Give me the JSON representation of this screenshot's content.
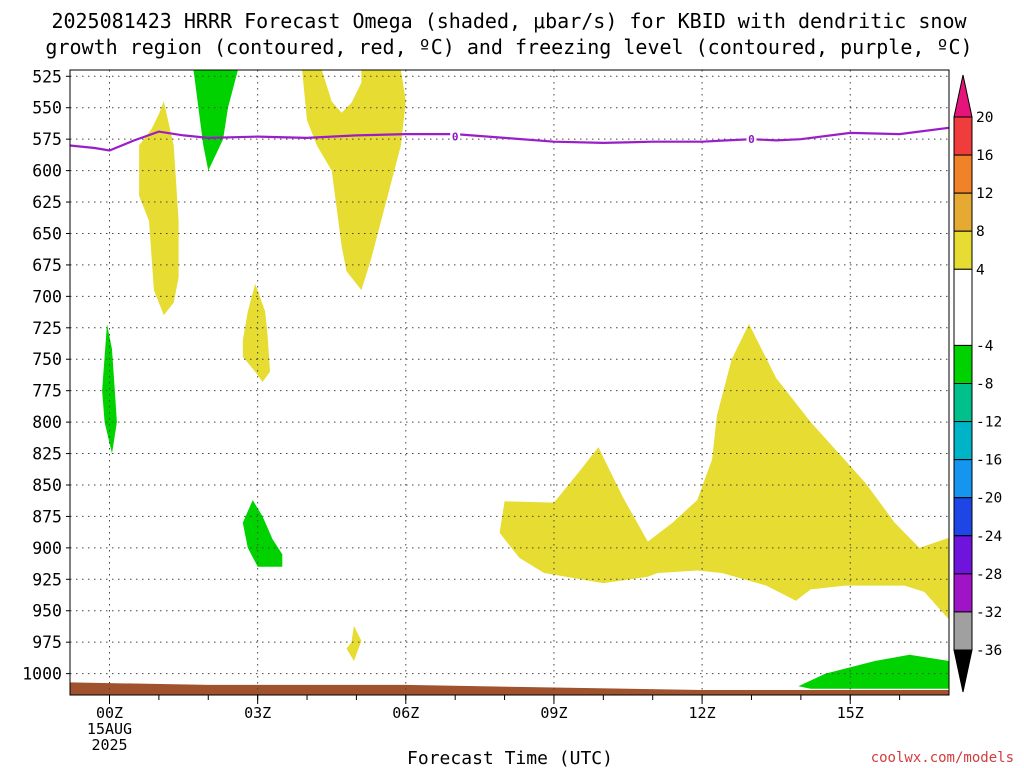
{
  "chart_data": {
    "type": "heatmap",
    "title_lines": [
      "2025081423 HRRR Forecast Omega (shaded, μbar/s) for KBID with dendritic snow",
      "growth region (contoured, red, ºC) and freezing level (contoured, purple, ºC)"
    ],
    "xlabel": "Forecast Time (UTC)",
    "x_range": [
      -0.8,
      17
    ],
    "x_ticks": [
      {
        "x": 0,
        "lines": [
          "00Z",
          "15AUG",
          "2025"
        ]
      },
      {
        "x": 3,
        "lines": [
          "03Z"
        ]
      },
      {
        "x": 6,
        "lines": [
          "06Z"
        ]
      },
      {
        "x": 9,
        "lines": [
          "09Z"
        ]
      },
      {
        "x": 12,
        "lines": [
          "12Z"
        ]
      },
      {
        "x": 15,
        "lines": [
          "15Z"
        ]
      }
    ],
    "y_range_hPa": [
      520,
      1017
    ],
    "y_ticks": [
      "525",
      "550",
      "575",
      "600",
      "625",
      "650",
      "675",
      "700",
      "725",
      "750",
      "775",
      "800",
      "825",
      "850",
      "875",
      "900",
      "925",
      "950",
      "975",
      "1000"
    ],
    "grid": true,
    "colorbar": {
      "ticks": [
        "20",
        "16",
        "12",
        "8",
        "4",
        "-4",
        "-8",
        "-12",
        "-16",
        "-20",
        "-24",
        "-28",
        "-32",
        "-36"
      ],
      "segments": [
        {
          "from": 16,
          "to": 20,
          "color": "#f03c3c"
        },
        {
          "from": 12,
          "to": 16,
          "color": "#f08228"
        },
        {
          "from": 8,
          "to": 12,
          "color": "#e6aa32"
        },
        {
          "from": 4,
          "to": 8,
          "color": "#e6dc32"
        },
        {
          "from": -4,
          "to": 4,
          "color": "#ffffff"
        },
        {
          "from": -8,
          "to": -4,
          "color": "#00d200"
        },
        {
          "from": -12,
          "to": -8,
          "color": "#00c08c"
        },
        {
          "from": -16,
          "to": -12,
          "color": "#00b4c8"
        },
        {
          "from": -20,
          "to": -16,
          "color": "#1496f0"
        },
        {
          "from": -24,
          "to": -20,
          "color": "#1e46e6"
        },
        {
          "from": -28,
          "to": -24,
          "color": "#6e14dc"
        },
        {
          "from": -32,
          "to": -28,
          "color": "#a014c8"
        },
        {
          "from": -36,
          "to": -32,
          "color": "#a0a0a0"
        }
      ],
      "top_arrow_color": "#e6147a",
      "bottom_arrow_color": "#000000"
    },
    "freezing_level": {
      "label": "0",
      "color": "#9a1ec8",
      "label_points": [
        [
          7.0,
          573
        ],
        [
          13.0,
          575
        ]
      ],
      "points": [
        [
          -0.8,
          580
        ],
        [
          -0.3,
          582
        ],
        [
          0,
          584
        ],
        [
          0.5,
          576
        ],
        [
          1.0,
          569
        ],
        [
          1.5,
          572
        ],
        [
          2,
          574
        ],
        [
          3,
          573
        ],
        [
          4,
          574
        ],
        [
          5,
          572
        ],
        [
          6,
          571
        ],
        [
          7,
          571
        ],
        [
          8,
          574
        ],
        [
          9,
          577
        ],
        [
          10,
          578
        ],
        [
          11,
          577
        ],
        [
          12,
          577
        ],
        [
          12.5,
          576
        ],
        [
          13,
          575
        ],
        [
          13.5,
          576
        ],
        [
          14,
          575
        ],
        [
          15,
          570
        ],
        [
          16,
          571
        ],
        [
          17,
          566
        ]
      ]
    },
    "omega_regions": [
      {
        "value": 5,
        "color": "#e6dc32",
        "points": [
          [
            0.85,
            567
          ],
          [
            1.0,
            555
          ],
          [
            1.1,
            545
          ],
          [
            1.3,
            580
          ],
          [
            1.4,
            640
          ],
          [
            1.4,
            685
          ],
          [
            1.3,
            705
          ],
          [
            1.1,
            715
          ],
          [
            0.9,
            695
          ],
          [
            0.8,
            640
          ],
          [
            0.6,
            620
          ],
          [
            0.6,
            580
          ]
        ]
      },
      {
        "value": -5,
        "color": "#00d200",
        "points": [
          [
            1.7,
            520
          ],
          [
            2.6,
            520
          ],
          [
            2.4,
            550
          ],
          [
            2.3,
            575
          ],
          [
            2.0,
            600
          ],
          [
            1.9,
            580
          ],
          [
            1.8,
            550
          ]
        ]
      },
      {
        "value": 5,
        "color": "#e6dc32",
        "points": [
          [
            3.9,
            520
          ],
          [
            4.3,
            520
          ],
          [
            4.5,
            545
          ],
          [
            4.7,
            554
          ],
          [
            4.9,
            546
          ],
          [
            5.1,
            530
          ],
          [
            5.1,
            520
          ],
          [
            5.7,
            520
          ],
          [
            5.9,
            520
          ],
          [
            6.0,
            545
          ],
          [
            5.9,
            580
          ],
          [
            5.7,
            610
          ],
          [
            5.5,
            640
          ],
          [
            5.3,
            670
          ],
          [
            5.1,
            695
          ],
          [
            4.8,
            680
          ],
          [
            4.7,
            660
          ],
          [
            4.6,
            630
          ],
          [
            4.5,
            600
          ],
          [
            4.2,
            580
          ],
          [
            4.0,
            560
          ]
        ]
      },
      {
        "value": 5,
        "color": "#e6dc32",
        "points": [
          [
            2.95,
            690
          ],
          [
            3.15,
            712
          ],
          [
            3.2,
            730
          ],
          [
            3.25,
            760
          ],
          [
            3.1,
            768
          ],
          [
            2.95,
            760
          ],
          [
            2.7,
            748
          ],
          [
            2.7,
            735
          ],
          [
            2.8,
            712
          ]
        ]
      },
      {
        "value": -5,
        "color": "#00d200",
        "points": [
          [
            -0.05,
            722
          ],
          [
            0.05,
            742
          ],
          [
            0.1,
            770
          ],
          [
            0.15,
            800
          ],
          [
            0.05,
            825
          ],
          [
            -0.1,
            800
          ],
          [
            -0.15,
            775
          ],
          [
            -0.1,
            748
          ]
        ]
      },
      {
        "value": -5,
        "color": "#00d200",
        "points": [
          [
            2.9,
            862
          ],
          [
            3.1,
            875
          ],
          [
            3.3,
            893
          ],
          [
            3.5,
            905
          ],
          [
            3.5,
            915
          ],
          [
            3.0,
            915
          ],
          [
            2.8,
            900
          ],
          [
            2.7,
            880
          ]
        ]
      },
      {
        "value": 5,
        "color": "#e6dc32",
        "points": [
          [
            4.9,
            975
          ],
          [
            4.95,
            962
          ],
          [
            5.1,
            974
          ],
          [
            4.95,
            990
          ],
          [
            4.8,
            980
          ]
        ]
      },
      {
        "value": 5,
        "color": "#e6dc32",
        "points": [
          [
            8.0,
            863
          ],
          [
            9.0,
            864
          ],
          [
            9.5,
            840
          ],
          [
            9.9,
            820
          ],
          [
            10.4,
            860
          ],
          [
            10.9,
            895
          ],
          [
            11.4,
            880
          ],
          [
            11.9,
            862
          ],
          [
            12.2,
            830
          ],
          [
            12.3,
            795
          ],
          [
            12.6,
            750
          ],
          [
            12.95,
            722
          ],
          [
            13.5,
            765
          ],
          [
            14.2,
            800
          ],
          [
            15.3,
            848
          ],
          [
            15.9,
            880
          ],
          [
            16.4,
            900
          ],
          [
            17.0,
            892
          ],
          [
            17.0,
            957
          ],
          [
            16.5,
            935
          ],
          [
            16.1,
            930
          ],
          [
            14.9,
            930
          ],
          [
            14.2,
            933
          ],
          [
            13.9,
            942
          ],
          [
            13.3,
            930
          ],
          [
            12.4,
            920
          ],
          [
            11.9,
            918
          ],
          [
            11.1,
            920
          ],
          [
            10.9,
            923
          ],
          [
            10.0,
            928
          ],
          [
            8.8,
            920
          ],
          [
            8.3,
            908
          ],
          [
            7.9,
            888
          ]
        ]
      },
      {
        "value": -5,
        "color": "#00d200",
        "points": [
          [
            13.95,
            1010
          ],
          [
            14.5,
            1000
          ],
          [
            15.5,
            990
          ],
          [
            16.2,
            985
          ],
          [
            17.0,
            990
          ],
          [
            17.0,
            1012
          ],
          [
            14.2,
            1012
          ]
        ]
      }
    ],
    "terrain": {
      "color": "#a0522d",
      "points": [
        [
          -0.8,
          1007
        ],
        [
          2,
          1009
        ],
        [
          6,
          1009
        ],
        [
          9,
          1011
        ],
        [
          12,
          1013
        ],
        [
          17,
          1013
        ]
      ]
    }
  },
  "credit": "coolwx.com/models"
}
